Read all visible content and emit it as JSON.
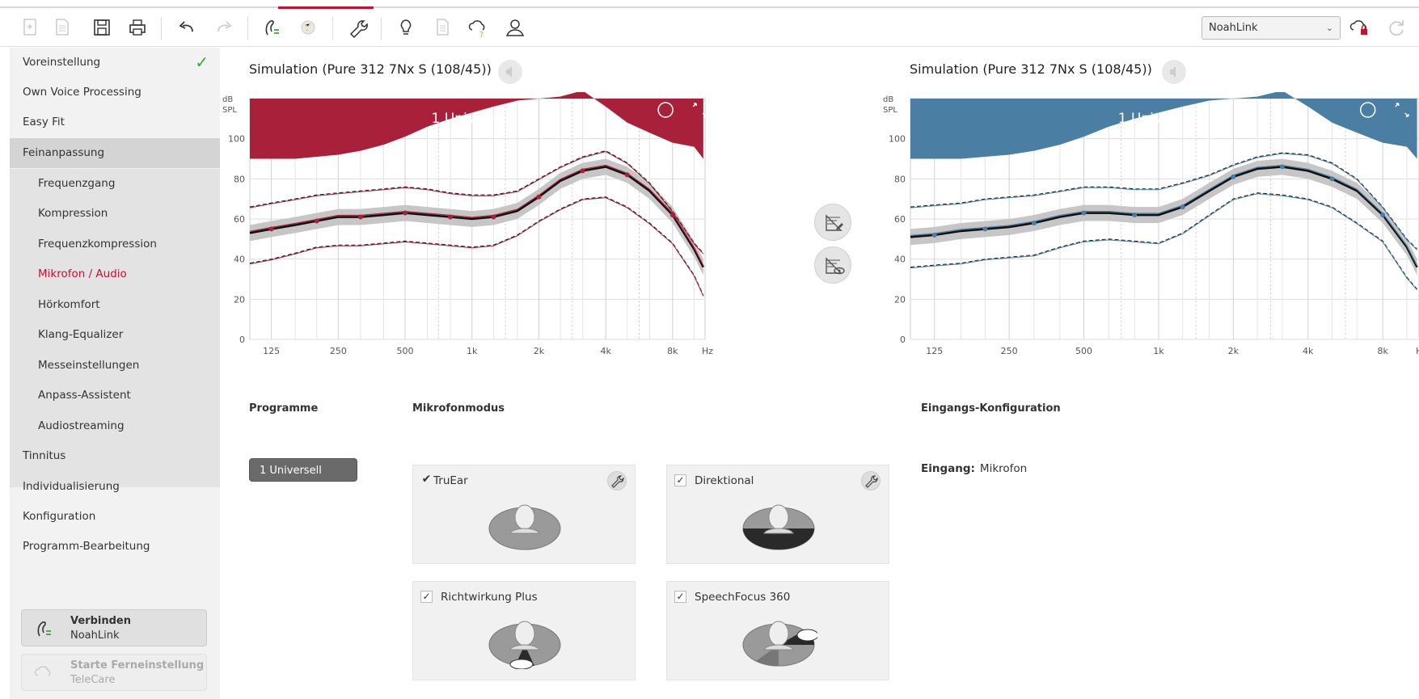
{
  "toolbar": {
    "icons": [
      "new-session-icon",
      "document-icon",
      "save-icon",
      "print-icon",
      "undo-icon",
      "redo-icon",
      "hearing-aid-connect-icon",
      "globe-icon",
      "wrench-icon",
      "lightbulb-icon",
      "report-icon",
      "cloud-help-icon",
      "user-icon"
    ],
    "device_select": "NoahLink",
    "right_icons": [
      "cloud-lock-icon",
      "refresh-icon"
    ]
  },
  "sidebar": {
    "items": [
      {
        "label": "Voreinstellung",
        "level": 1,
        "checked": true
      },
      {
        "label": "Own Voice Processing",
        "level": 1
      },
      {
        "label": "Easy Fit",
        "level": 1
      },
      {
        "label": "Feinanpassung",
        "level": 1,
        "active": true
      },
      {
        "label": "Frequenzgang",
        "level": 2
      },
      {
        "label": "Kompression",
        "level": 2
      },
      {
        "label": "Frequenzkompression",
        "level": 2
      },
      {
        "label": "Mikrofon / Audio",
        "level": 2,
        "selected": true
      },
      {
        "label": "Hörkomfort",
        "level": 2
      },
      {
        "label": "Klang-Equalizer",
        "level": 2
      },
      {
        "label": "Messeinstellungen",
        "level": 2
      },
      {
        "label": "Anpass-Assistent",
        "level": 2
      },
      {
        "label": "Audiostreaming",
        "level": 2
      },
      {
        "label": "Tinnitus",
        "level": 1
      },
      {
        "label": "Individualisierung",
        "level": 1
      },
      {
        "label": "Konfiguration",
        "level": 1
      },
      {
        "label": "Programm-Bearbeitung",
        "level": 1
      }
    ],
    "connect": {
      "title": "Verbinden",
      "subtitle": "NoahLink"
    },
    "remote": {
      "title": "Starte Ferneinstellung",
      "subtitle": "TeleCare"
    }
  },
  "left_panel": {
    "title": "Simulation (Pure 312 7Nx S (108/45))",
    "program_label": "1 Universell",
    "color": "#a8203a"
  },
  "right_panel": {
    "title": "Simulation (Pure 312 7Nx S (108/45))",
    "program_label": "1 Universell",
    "color": "#4a7fa3"
  },
  "chart_data": [
    {
      "type": "line",
      "ylabel": "dB SPL",
      "xlabel": "Hz",
      "ylim": [
        0,
        120
      ],
      "yticks": [
        "0",
        "20",
        "40",
        "60",
        "80",
        "100"
      ],
      "categories": [
        "125",
        "250",
        "500",
        "1k",
        "2k",
        "4k",
        "8k"
      ],
      "x": [
        100,
        125,
        160,
        200,
        250,
        315,
        400,
        500,
        630,
        800,
        1000,
        1250,
        1600,
        2000,
        2500,
        3150,
        4000,
        5000,
        6300,
        8000,
        10000,
        11000
      ],
      "series": [
        {
          "values": [
            53,
            55,
            57,
            59,
            61,
            61,
            62,
            63,
            62,
            61,
            60,
            61,
            64,
            71,
            79,
            84,
            86,
            82,
            74,
            62,
            45,
            36
          ]
        },
        {
          "values": [
            66,
            68,
            70,
            72,
            73,
            74,
            75,
            76,
            75,
            73,
            72,
            72,
            74,
            80,
            86,
            91,
            94,
            88,
            78,
            64,
            48,
            43
          ]
        },
        {
          "values": [
            38,
            40,
            43,
            46,
            47,
            47,
            48,
            49,
            48,
            47,
            46,
            47,
            52,
            59,
            65,
            70,
            71,
            66,
            58,
            48,
            32,
            22
          ]
        }
      ]
    },
    {
      "type": "line",
      "ylabel": "dB SPL",
      "xlabel": "Hz",
      "ylim": [
        0,
        120
      ],
      "yticks": [
        "0",
        "20",
        "40",
        "60",
        "80",
        "100"
      ],
      "categories": [
        "125",
        "250",
        "500",
        "1k",
        "2k",
        "4k",
        "8k"
      ],
      "x": [
        100,
        125,
        160,
        200,
        250,
        315,
        400,
        500,
        630,
        800,
        1000,
        1250,
        1600,
        2000,
        2500,
        3150,
        4000,
        5000,
        6300,
        8000,
        10000,
        11000
      ],
      "series": [
        {
          "values": [
            51,
            52,
            54,
            55,
            56,
            58,
            61,
            63,
            63,
            62,
            62,
            66,
            74,
            81,
            85,
            86,
            84,
            80,
            74,
            62,
            46,
            36
          ]
        },
        {
          "values": [
            66,
            67,
            68,
            70,
            71,
            72,
            74,
            76,
            76,
            75,
            75,
            78,
            82,
            87,
            91,
            93,
            92,
            88,
            80,
            66,
            50,
            45
          ]
        },
        {
          "values": [
            36,
            37,
            38,
            40,
            41,
            42,
            46,
            49,
            50,
            49,
            48,
            53,
            62,
            70,
            73,
            72,
            70,
            66,
            58,
            49,
            31,
            25
          ]
        }
      ]
    }
  ],
  "sections": {
    "programme": "Programme",
    "mikrofonmodus": "Mikrofonmodus",
    "eingangs": "Eingangs-Konfiguration"
  },
  "program_button": "1 Universell",
  "mic_modes": [
    {
      "label": "TruEar",
      "checked": true,
      "settings": true
    },
    {
      "label": "Direktional",
      "checked": true,
      "settings": true
    },
    {
      "label": "Richtwirkung Plus",
      "checked": true,
      "settings": false
    },
    {
      "label": "SpeechFocus 360",
      "checked": true,
      "settings": false
    }
  ],
  "eingang": {
    "label": "Eingang:",
    "value": "Mikrofon"
  }
}
